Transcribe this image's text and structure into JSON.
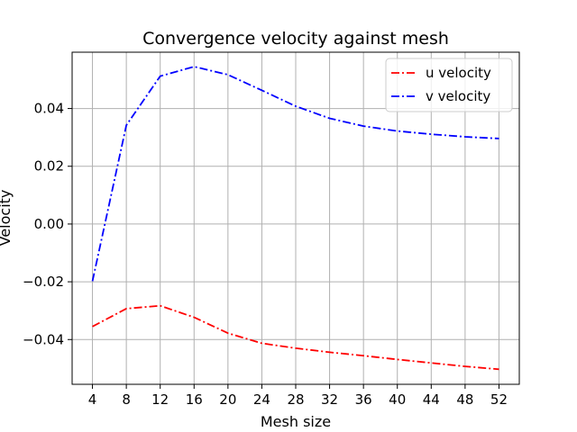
{
  "chart_data": {
    "type": "line",
    "title": "Convergence velocity against mesh",
    "xlabel": "Mesh size",
    "ylabel": "Velocity",
    "x": [
      4,
      8,
      12,
      16,
      20,
      24,
      28,
      32,
      36,
      40,
      44,
      48,
      52
    ],
    "xticks": [
      "4",
      "8",
      "12",
      "16",
      "20",
      "24",
      "28",
      "32",
      "36",
      "40",
      "44",
      "48",
      "52"
    ],
    "yticks": [
      -0.04,
      -0.02,
      0.0,
      0.02,
      0.04
    ],
    "ytick_labels": [
      "−0.04",
      "−0.02",
      "0.00",
      "0.02",
      "0.04"
    ],
    "xlim": [
      1.6,
      54.4
    ],
    "ylim": [
      -0.0555,
      0.0595
    ],
    "grid": true,
    "legend_position": "top-right",
    "series": [
      {
        "name": "u velocity",
        "color": "#ff0000",
        "linestyle": "dash-dot",
        "values": [
          -0.0355,
          -0.0293,
          -0.0283,
          -0.0323,
          -0.0378,
          -0.0413,
          -0.043,
          -0.0444,
          -0.0456,
          -0.0469,
          -0.0481,
          -0.0493,
          -0.0503
        ]
      },
      {
        "name": "v velocity",
        "color": "#0000ff",
        "linestyle": "dash-dot",
        "values": [
          -0.0198,
          0.0342,
          0.0512,
          0.0545,
          0.0517,
          0.0463,
          0.0408,
          0.0366,
          0.0339,
          0.0322,
          0.0311,
          0.0302,
          0.0296
        ]
      }
    ]
  }
}
